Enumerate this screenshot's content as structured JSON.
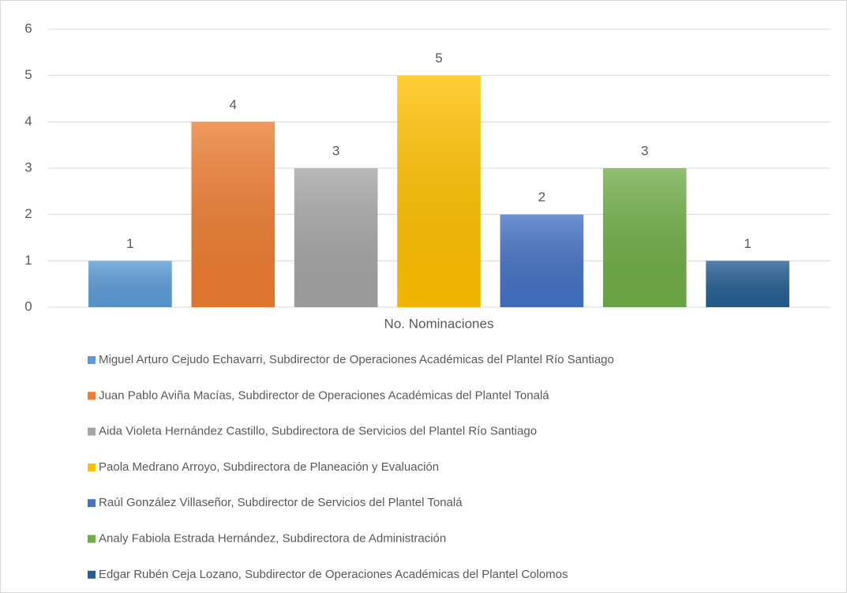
{
  "chart_data": {
    "type": "bar",
    "categories": [
      "No. Nominaciones"
    ],
    "series": [
      {
        "name": "Miguel Arturo Cejudo Echavarri, Subdirector de Operaciones Académicas del Plantel Río Santiago",
        "color": "#5b9bd5",
        "values": [
          1
        ]
      },
      {
        "name": "Juan Pablo Aviña Macías, Subdirector de Operaciones Académicas del Plantel Tonalá",
        "color": "#ed7d31",
        "values": [
          4
        ]
      },
      {
        "name": "Aida Violeta Hernández Castillo, Subdirectora de Servicios del Plantel Río Santiago",
        "color": "#a5a5a5",
        "values": [
          3
        ]
      },
      {
        "name": "Paola Medrano Arroyo, Subdirectora de Planeación y Evaluación",
        "color": "#ffc000",
        "values": [
          5
        ]
      },
      {
        "name": "Raúl González Villaseñor, Subdirector de Servicios del Plantel Tonalá",
        "color": "#4472c4",
        "values": [
          2
        ]
      },
      {
        "name": "Analy Fabiola Estrada Hernández, Subdirectora de Administración",
        "color": "#70ad47",
        "values": [
          3
        ]
      },
      {
        "name": "Edgar Rubén Ceja Lozano, Subdirector de Operaciones Académicas del Plantel Colomos",
        "color": "#255e91",
        "values": [
          1
        ]
      }
    ],
    "ylim": [
      0,
      6
    ],
    "yticks": [
      0,
      1,
      2,
      3,
      4,
      5,
      6
    ],
    "grid": true,
    "legend": "bottom"
  }
}
